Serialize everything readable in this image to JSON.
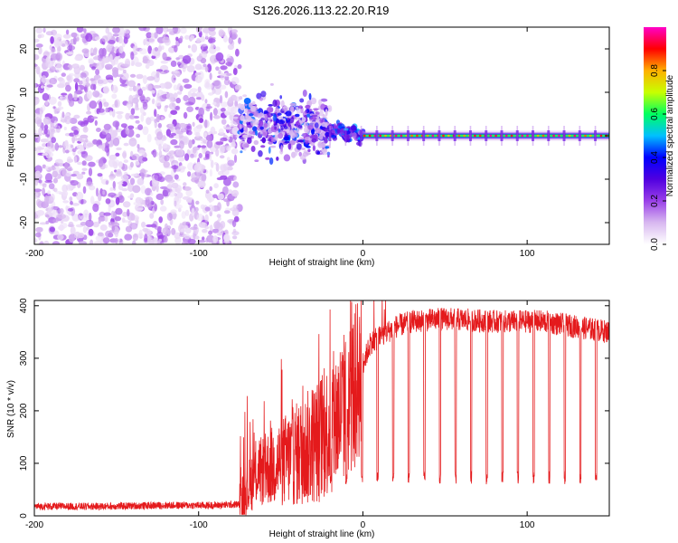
{
  "title": "S126.2026.113.22.20.R19",
  "chart_data": [
    {
      "type": "heatmap",
      "xlabel": "Height of straight line (km)",
      "ylabel": "Frequency (Hz)",
      "xlim": [
        -200,
        150
      ],
      "ylim": [
        -25,
        25
      ],
      "xticks": [
        -200,
        -100,
        0,
        100
      ],
      "yticks": [
        -20,
        -10,
        0,
        10,
        20
      ],
      "colorbar": {
        "label": "Normalized spectral amplitude",
        "ticks": [
          "0.0",
          "0.2",
          "0.4",
          "0.6",
          "0.8"
        ],
        "tick_values": [
          0.0,
          0.2,
          0.4,
          0.6,
          0.8
        ],
        "range": [
          0.0,
          1.0
        ],
        "colors": [
          "#ffffff",
          "#d8b8f0",
          "#9a40e8",
          "#5000e0",
          "#0000ff",
          "#00c0ff",
          "#00ff60",
          "#c8ff00",
          "#ffb000",
          "#ff0000",
          "#ff00c8"
        ]
      },
      "regions": [
        {
          "x_range": [
            -200,
            -75
          ],
          "freq_range": [
            -25,
            25
          ],
          "description": "broadband noise"
        },
        {
          "x_range": [
            -75,
            -20
          ],
          "freq_center": 3,
          "freq_spread": 7,
          "description": "scattered tone"
        },
        {
          "x_range": [
            -20,
            0
          ],
          "freq_center": 1.5,
          "freq_spread": 2.5,
          "description": "converging tone"
        },
        {
          "x_range": [
            0,
            150
          ],
          "freq_center": 0,
          "freq_spread": 1,
          "description": "steady carrier"
        }
      ]
    },
    {
      "type": "line",
      "xlabel": "Height of straight line (km)",
      "ylabel": "SNR (10 * v/v)",
      "xlim": [
        -200,
        150
      ],
      "ylim": [
        0,
        410
      ],
      "xticks": [
        -200,
        -100,
        0,
        100
      ],
      "yticks": [
        0,
        100,
        200,
        300,
        400
      ],
      "color": "#e41a1c",
      "series": [
        {
          "name": "SNR",
          "x": [
            -200,
            -160,
            -120,
            -90,
            -75,
            -65,
            -55,
            -45,
            -35,
            -25,
            -15,
            -5,
            0,
            5,
            10,
            20,
            30,
            50,
            80,
            110,
            130,
            150
          ],
          "y": [
            18,
            18,
            20,
            20,
            22,
            80,
            95,
            110,
            125,
            150,
            190,
            240,
            290,
            330,
            340,
            360,
            370,
            375,
            370,
            370,
            360,
            350
          ]
        }
      ],
      "dropouts_start_km": -20,
      "dropout_spacing_km": 9.5,
      "dropout_min_snr": 60
    }
  ]
}
